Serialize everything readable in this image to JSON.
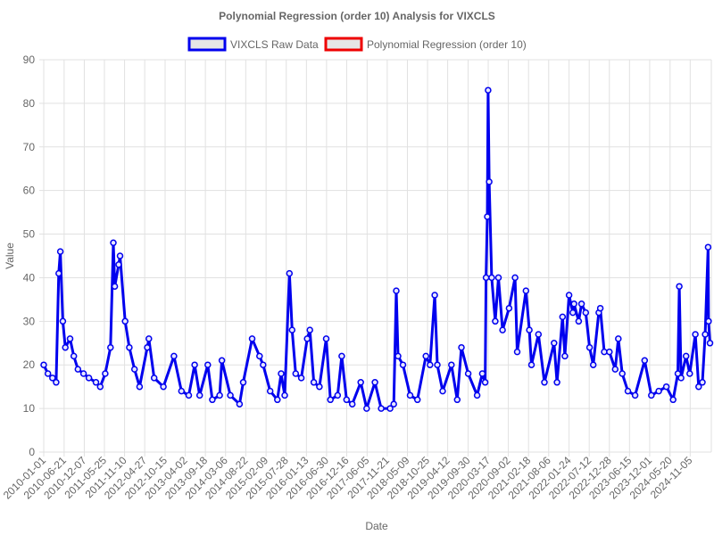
{
  "chart_data": {
    "type": "line",
    "title": "Polynomial Regression (order 10) Analysis for VIXCLS",
    "xlabel": "Date",
    "ylabel": "Value",
    "ylim": [
      0,
      90
    ],
    "yticks": [
      0,
      10,
      20,
      30,
      40,
      50,
      60,
      70,
      80,
      90
    ],
    "xlim": [
      "2010-01-01",
      "2025-05-01"
    ],
    "xticks": [
      "2010-01-01",
      "2010-06-21",
      "2010-12-07",
      "2011-05-25",
      "2011-11-10",
      "2012-04-27",
      "2012-10-15",
      "2013-04-02",
      "2013-09-18",
      "2014-03-06",
      "2014-08-22",
      "2015-02-09",
      "2015-07-28",
      "2016-01-13",
      "2016-06-30",
      "2016-12-16",
      "2017-06-05",
      "2017-11-21",
      "2018-05-09",
      "2018-10-25",
      "2019-04-12",
      "2019-09-30",
      "2020-03-17",
      "2020-09-02",
      "2021-02-18",
      "2021-08-06",
      "2022-01-24",
      "2022-07-12",
      "2022-12-28",
      "2023-06-15",
      "2023-12-01",
      "2024-05-20",
      "2024-11-05"
    ],
    "grid": true,
    "legend_position": "top",
    "series": [
      {
        "name": "VIXCLS Raw Data",
        "color": "#0000ee",
        "x": [
          "2010-01-01",
          "2010-02-05",
          "2010-03-15",
          "2010-04-15",
          "2010-05-07",
          "2010-05-20",
          "2010-06-10",
          "2010-07-01",
          "2010-08-10",
          "2010-09-10",
          "2010-10-15",
          "2010-12-01",
          "2011-01-15",
          "2011-03-15",
          "2011-04-20",
          "2011-06-01",
          "2011-07-15",
          "2011-08-08",
          "2011-08-20",
          "2011-09-22",
          "2011-10-03",
          "2011-11-15",
          "2011-12-20",
          "2012-02-01",
          "2012-03-15",
          "2012-05-18",
          "2012-06-01",
          "2012-07-15",
          "2012-10-01",
          "2012-12-28",
          "2013-03-01",
          "2013-05-01",
          "2013-06-20",
          "2013-08-01",
          "2013-10-08",
          "2013-11-15",
          "2014-01-15",
          "2014-02-03",
          "2014-04-15",
          "2014-07-01",
          "2014-08-01",
          "2014-10-15",
          "2014-12-16",
          "2015-01-15",
          "2015-03-15",
          "2015-05-15",
          "2015-06-15",
          "2015-07-15",
          "2015-08-24",
          "2015-09-15",
          "2015-10-15",
          "2015-12-01",
          "2016-01-20",
          "2016-02-11",
          "2016-03-15",
          "2016-05-01",
          "2016-06-27",
          "2016-08-01",
          "2016-10-01",
          "2016-11-04",
          "2016-12-15",
          "2017-02-01",
          "2017-04-13",
          "2017-06-01",
          "2017-08-10",
          "2017-10-01",
          "2017-12-15",
          "2018-01-15",
          "2018-02-05",
          "2018-02-20",
          "2018-04-02",
          "2018-06-01",
          "2018-08-01",
          "2018-10-11",
          "2018-11-15",
          "2018-12-24",
          "2019-01-15",
          "2019-03-01",
          "2019-05-13",
          "2019-07-01",
          "2019-08-05",
          "2019-10-01",
          "2019-12-15",
          "2020-01-27",
          "2020-02-20",
          "2020-02-28",
          "2020-03-09",
          "2020-03-16",
          "2020-03-25",
          "2020-04-15",
          "2020-05-15",
          "2020-06-11",
          "2020-07-15",
          "2020-09-08",
          "2020-10-28",
          "2020-11-15",
          "2021-01-27",
          "2021-02-25",
          "2021-03-15",
          "2021-05-12",
          "2021-07-01",
          "2021-09-20",
          "2021-10-15",
          "2021-11-30",
          "2021-12-20",
          "2022-01-24",
          "2022-02-24",
          "2022-03-07",
          "2022-04-15",
          "2022-05-09",
          "2022-06-13",
          "2022-07-15",
          "2022-08-15",
          "2022-09-30",
          "2022-10-13",
          "2022-11-15",
          "2022-12-28",
          "2023-02-15",
          "2023-03-13",
          "2023-04-15",
          "2023-06-01",
          "2023-08-01",
          "2023-10-20",
          "2023-12-15",
          "2024-02-15",
          "2024-04-19",
          "2024-06-15",
          "2024-07-24",
          "2024-08-05",
          "2024-08-20",
          "2024-10-01",
          "2024-11-01",
          "2024-12-18",
          "2025-01-15",
          "2025-02-15",
          "2025-03-10",
          "2025-04-04",
          "2025-04-08",
          "2025-04-20"
        ],
        "y": [
          20,
          18,
          17,
          16,
          41,
          46,
          30,
          24,
          26,
          22,
          19,
          18,
          17,
          16,
          15,
          18,
          24,
          48,
          38,
          43,
          45,
          30,
          24,
          19,
          15,
          24,
          26,
          17,
          15,
          22,
          14,
          13,
          20,
          13,
          20,
          12,
          13,
          21,
          13,
          11,
          16,
          26,
          22,
          20,
          14,
          12,
          18,
          13,
          41,
          28,
          18,
          17,
          26,
          28,
          16,
          15,
          26,
          12,
          13,
          22,
          12,
          11,
          16,
          10,
          16,
          10,
          10,
          11,
          37,
          22,
          20,
          13,
          12,
          22,
          20,
          36,
          20,
          14,
          20,
          12,
          24,
          18,
          13,
          18,
          16,
          40,
          54,
          83,
          62,
          40,
          30,
          40,
          28,
          33,
          40,
          23,
          37,
          28,
          20,
          27,
          16,
          25,
          16,
          31,
          22,
          36,
          32,
          34,
          30,
          34,
          32,
          24,
          20,
          32,
          33,
          23,
          23,
          19,
          26,
          18,
          14,
          13,
          21,
          13,
          14,
          15,
          12,
          18,
          38,
          17,
          22,
          18,
          27,
          15,
          16,
          27,
          47,
          30,
          25
        ]
      },
      {
        "name": "Polynomial Regression (order 10)",
        "color": "#ee0000",
        "x": [],
        "y": []
      }
    ]
  }
}
